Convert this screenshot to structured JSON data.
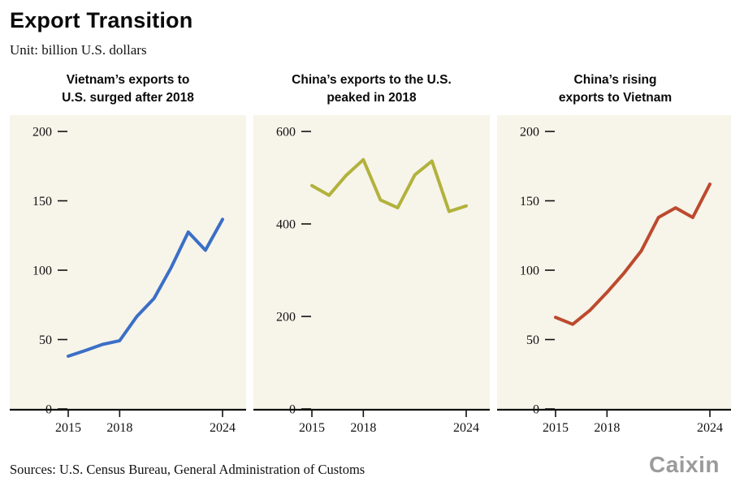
{
  "page": {
    "title": "Export Transition",
    "unit": "Unit: billion U.S. dollars",
    "sources": "Sources: U.S. Census Bureau, General Administration of Customs",
    "logo": "Caixin",
    "panel_bg": "#f7f4ea",
    "axis_color": "#111111",
    "logo_color": "#9b9b9b"
  },
  "chart_data": [
    {
      "type": "line",
      "title": "Vietnam’s exports to U.S. surged after 2018",
      "title_lines": [
        "Vietnam’s exports to",
        "U.S. surged after 2018"
      ],
      "color": "#3b6fc6",
      "x": [
        2015,
        2016,
        2017,
        2018,
        2019,
        2020,
        2021,
        2022,
        2023,
        2024
      ],
      "values": [
        38.0,
        42.1,
        46.5,
        49.2,
        66.6,
        79.6,
        101.9,
        127.5,
        114.4,
        136.6
      ],
      "ylim": [
        0,
        200
      ],
      "yticks": [
        0,
        50,
        100,
        150,
        200
      ],
      "xticks": [
        2015,
        2018,
        2024
      ],
      "grid": false,
      "legend": "none"
    },
    {
      "type": "line",
      "title": "China’s exports to the U.S. peaked in 2018",
      "title_lines": [
        "China’s exports to the U.S.",
        "peaked in 2018"
      ],
      "color": "#b2b23c",
      "x": [
        2015,
        2016,
        2017,
        2018,
        2019,
        2020,
        2021,
        2022,
        2023,
        2024
      ],
      "values": [
        483,
        462,
        505,
        539,
        452,
        435,
        506,
        536,
        427,
        439
      ],
      "ylim": [
        0,
        600
      ],
      "yticks": [
        0,
        200,
        400,
        600
      ],
      "xticks": [
        2015,
        2018,
        2024
      ],
      "grid": false,
      "legend": "none"
    },
    {
      "type": "line",
      "title": "China’s rising exports to Vietnam",
      "title_lines": [
        "China’s rising",
        "exports to Vietnam"
      ],
      "color": "#bc4a2e",
      "x": [
        2015,
        2016,
        2017,
        2018,
        2019,
        2020,
        2021,
        2022,
        2023,
        2024
      ],
      "values": [
        66,
        61,
        71,
        84,
        98,
        114,
        138,
        145,
        138,
        162
      ],
      "ylim": [
        0,
        200
      ],
      "yticks": [
        0,
        50,
        100,
        150,
        200
      ],
      "xticks": [
        2015,
        2018,
        2024
      ],
      "grid": false,
      "legend": "none"
    }
  ]
}
